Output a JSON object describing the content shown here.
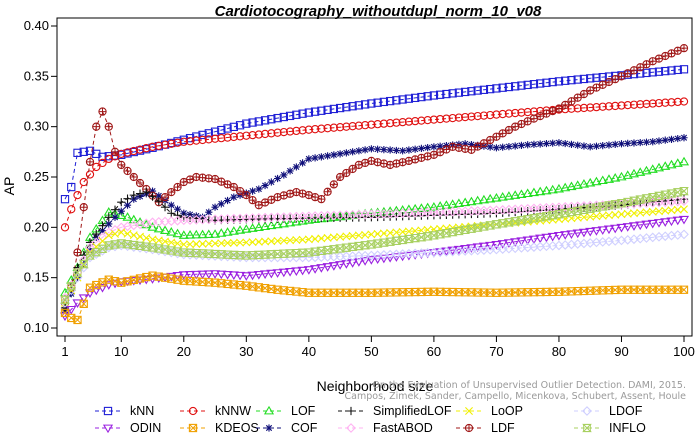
{
  "chart_data": {
    "type": "line",
    "title": "Cardiotocography_withoutdupl_norm_10_v08",
    "xlabel": "Neighborhood size",
    "ylabel": "AP",
    "xlim": [
      1,
      100
    ],
    "ylim": [
      0.1,
      0.4
    ],
    "xticks": [
      1,
      10,
      20,
      30,
      40,
      50,
      60,
      70,
      80,
      90,
      100
    ],
    "yticks": [
      0.1,
      0.15,
      0.2,
      0.25,
      0.3,
      0.35,
      0.4
    ],
    "grid": false,
    "legend_position": "bottom",
    "credit": [
      "Campos, Zimek, Sander, Campello, Micenkova, Schubert, Assent, Houle",
      "On the Evaluation of Unsupervised Outlier Detection. DAMI, 2015."
    ],
    "series": [
      {
        "name": "kNN",
        "color": "#1f1fd6",
        "marker": "square",
        "points": [
          [
            1,
            0.228
          ],
          [
            2,
            0.24
          ],
          [
            3,
            0.274
          ],
          [
            5,
            0.276
          ],
          [
            7,
            0.27
          ],
          [
            10,
            0.272
          ],
          [
            15,
            0.279
          ],
          [
            20,
            0.287
          ],
          [
            30,
            0.303
          ],
          [
            40,
            0.314
          ],
          [
            50,
            0.323
          ],
          [
            60,
            0.331
          ],
          [
            70,
            0.338
          ],
          [
            80,
            0.345
          ],
          [
            90,
            0.351
          ],
          [
            100,
            0.357
          ]
        ]
      },
      {
        "name": "kNNW",
        "color": "#e01010",
        "marker": "circle",
        "points": [
          [
            1,
            0.2
          ],
          [
            2,
            0.218
          ],
          [
            3,
            0.232
          ],
          [
            4,
            0.245
          ],
          [
            6,
            0.26
          ],
          [
            8,
            0.268
          ],
          [
            10,
            0.273
          ],
          [
            15,
            0.28
          ],
          [
            20,
            0.285
          ],
          [
            30,
            0.291
          ],
          [
            40,
            0.297
          ],
          [
            50,
            0.302
          ],
          [
            60,
            0.307
          ],
          [
            70,
            0.312
          ],
          [
            80,
            0.317
          ],
          [
            90,
            0.321
          ],
          [
            100,
            0.325
          ]
        ]
      },
      {
        "name": "LOF",
        "color": "#22dd22",
        "marker": "triangle-up",
        "points": [
          [
            1,
            0.135
          ],
          [
            3,
            0.16
          ],
          [
            5,
            0.19
          ],
          [
            8,
            0.215
          ],
          [
            11,
            0.21
          ],
          [
            15,
            0.2
          ],
          [
            20,
            0.192
          ],
          [
            25,
            0.193
          ],
          [
            30,
            0.198
          ],
          [
            40,
            0.207
          ],
          [
            50,
            0.214
          ],
          [
            60,
            0.22
          ],
          [
            70,
            0.229
          ],
          [
            80,
            0.238
          ],
          [
            90,
            0.25
          ],
          [
            100,
            0.265
          ]
        ]
      },
      {
        "name": "COF",
        "color": "#10107a",
        "marker": "star",
        "points": [
          [
            1,
            0.118
          ],
          [
            3,
            0.15
          ],
          [
            6,
            0.19
          ],
          [
            9,
            0.21
          ],
          [
            12,
            0.228
          ],
          [
            15,
            0.236
          ],
          [
            18,
            0.222
          ],
          [
            20,
            0.214
          ],
          [
            23,
            0.21
          ],
          [
            25,
            0.22
          ],
          [
            28,
            0.23
          ],
          [
            32,
            0.238
          ],
          [
            36,
            0.252
          ],
          [
            40,
            0.268
          ],
          [
            45,
            0.273
          ],
          [
            50,
            0.278
          ],
          [
            55,
            0.276
          ],
          [
            60,
            0.28
          ],
          [
            65,
            0.283
          ],
          [
            70,
            0.279
          ],
          [
            75,
            0.282
          ],
          [
            80,
            0.284
          ],
          [
            85,
            0.28
          ],
          [
            90,
            0.283
          ],
          [
            95,
            0.285
          ],
          [
            100,
            0.289
          ]
        ]
      },
      {
        "name": "LDF",
        "color": "#a01818",
        "marker": "circle-cross",
        "points": [
          [
            1,
            0.125
          ],
          [
            2,
            0.14
          ],
          [
            3,
            0.175
          ],
          [
            4,
            0.22
          ],
          [
            5,
            0.265
          ],
          [
            6,
            0.3
          ],
          [
            7,
            0.315
          ],
          [
            8,
            0.3
          ],
          [
            9,
            0.275
          ],
          [
            10,
            0.262
          ],
          [
            12,
            0.25
          ],
          [
            14,
            0.238
          ],
          [
            16,
            0.225
          ],
          [
            18,
            0.235
          ],
          [
            20,
            0.245
          ],
          [
            22,
            0.25
          ],
          [
            25,
            0.248
          ],
          [
            28,
            0.24
          ],
          [
            30,
            0.232
          ],
          [
            32,
            0.222
          ],
          [
            35,
            0.23
          ],
          [
            38,
            0.235
          ],
          [
            40,
            0.232
          ],
          [
            42,
            0.228
          ],
          [
            45,
            0.25
          ],
          [
            48,
            0.262
          ],
          [
            50,
            0.266
          ],
          [
            53,
            0.262
          ],
          [
            56,
            0.266
          ],
          [
            60,
            0.272
          ],
          [
            63,
            0.28
          ],
          [
            66,
            0.277
          ],
          [
            70,
            0.29
          ],
          [
            73,
            0.3
          ],
          [
            76,
            0.308
          ],
          [
            80,
            0.318
          ],
          [
            85,
            0.336
          ],
          [
            90,
            0.35
          ],
          [
            95,
            0.365
          ],
          [
            100,
            0.378
          ]
        ]
      },
      {
        "name": "SimplifiedLOF",
        "color": "#111111",
        "marker": "plus",
        "points": [
          [
            1,
            0.12
          ],
          [
            3,
            0.16
          ],
          [
            5,
            0.185
          ],
          [
            8,
            0.21
          ],
          [
            10,
            0.225
          ],
          [
            12,
            0.232
          ],
          [
            14,
            0.235
          ],
          [
            16,
            0.226
          ],
          [
            18,
            0.214
          ],
          [
            20,
            0.21
          ],
          [
            25,
            0.207
          ],
          [
            30,
            0.208
          ],
          [
            40,
            0.209
          ],
          [
            50,
            0.21
          ],
          [
            60,
            0.212
          ],
          [
            70,
            0.214
          ],
          [
            80,
            0.218
          ],
          [
            90,
            0.222
          ],
          [
            100,
            0.228
          ]
        ]
      },
      {
        "name": "FastABOD",
        "color": "#ffb3f2",
        "marker": "diamond",
        "points": [
          [
            1,
            0.13
          ],
          [
            3,
            0.155
          ],
          [
            5,
            0.18
          ],
          [
            8,
            0.195
          ],
          [
            10,
            0.2
          ],
          [
            15,
            0.205
          ],
          [
            20,
            0.207
          ],
          [
            30,
            0.209
          ],
          [
            40,
            0.211
          ],
          [
            50,
            0.213
          ],
          [
            60,
            0.215
          ],
          [
            70,
            0.217
          ],
          [
            80,
            0.22
          ],
          [
            90,
            0.223
          ],
          [
            100,
            0.226
          ]
        ]
      },
      {
        "name": "LoOP",
        "color": "#f0f000",
        "marker": "x",
        "points": [
          [
            1,
            0.125
          ],
          [
            3,
            0.15
          ],
          [
            5,
            0.175
          ],
          [
            8,
            0.192
          ],
          [
            10,
            0.195
          ],
          [
            15,
            0.188
          ],
          [
            20,
            0.183
          ],
          [
            30,
            0.185
          ],
          [
            40,
            0.188
          ],
          [
            50,
            0.193
          ],
          [
            60,
            0.198
          ],
          [
            70,
            0.203
          ],
          [
            80,
            0.208
          ],
          [
            90,
            0.213
          ],
          [
            100,
            0.218
          ]
        ]
      },
      {
        "name": "ODIN",
        "color": "#9a20e0",
        "marker": "triangle-down",
        "points": [
          [
            1,
            0.112
          ],
          [
            3,
            0.125
          ],
          [
            5,
            0.135
          ],
          [
            8,
            0.143
          ],
          [
            10,
            0.146
          ],
          [
            15,
            0.149
          ],
          [
            20,
            0.153
          ],
          [
            25,
            0.154
          ],
          [
            30,
            0.152
          ],
          [
            40,
            0.158
          ],
          [
            50,
            0.168
          ],
          [
            60,
            0.175
          ],
          [
            70,
            0.183
          ],
          [
            80,
            0.192
          ],
          [
            90,
            0.2
          ],
          [
            100,
            0.208
          ]
        ]
      },
      {
        "name": "KDEOS",
        "color": "#f0a000",
        "marker": "square-x",
        "points": [
          [
            1,
            0.115
          ],
          [
            2,
            0.11
          ],
          [
            3,
            0.108
          ],
          [
            5,
            0.14
          ],
          [
            8,
            0.148
          ],
          [
            10,
            0.145
          ],
          [
            15,
            0.152
          ],
          [
            20,
            0.147
          ],
          [
            25,
            0.145
          ],
          [
            30,
            0.142
          ],
          [
            35,
            0.138
          ],
          [
            40,
            0.135
          ],
          [
            50,
            0.135
          ],
          [
            60,
            0.136
          ],
          [
            70,
            0.135
          ],
          [
            80,
            0.136
          ],
          [
            90,
            0.138
          ],
          [
            100,
            0.138
          ]
        ]
      },
      {
        "name": "LDOF",
        "color": "#cfcfff",
        "marker": "diamond",
        "points": [
          [
            1,
            0.125
          ],
          [
            3,
            0.15
          ],
          [
            5,
            0.17
          ],
          [
            8,
            0.18
          ],
          [
            10,
            0.182
          ],
          [
            15,
            0.178
          ],
          [
            20,
            0.173
          ],
          [
            30,
            0.17
          ],
          [
            40,
            0.17
          ],
          [
            50,
            0.172
          ],
          [
            60,
            0.175
          ],
          [
            70,
            0.178
          ],
          [
            80,
            0.182
          ],
          [
            90,
            0.187
          ],
          [
            100,
            0.193
          ]
        ]
      },
      {
        "name": "INFLO",
        "color": "#a8d060",
        "marker": "hourglass",
        "points": [
          [
            1,
            0.128
          ],
          [
            3,
            0.155
          ],
          [
            5,
            0.172
          ],
          [
            8,
            0.182
          ],
          [
            10,
            0.184
          ],
          [
            15,
            0.18
          ],
          [
            20,
            0.175
          ],
          [
            30,
            0.172
          ],
          [
            40,
            0.175
          ],
          [
            50,
            0.183
          ],
          [
            60,
            0.192
          ],
          [
            70,
            0.203
          ],
          [
            80,
            0.213
          ],
          [
            90,
            0.224
          ],
          [
            100,
            0.236
          ]
        ]
      }
    ]
  }
}
